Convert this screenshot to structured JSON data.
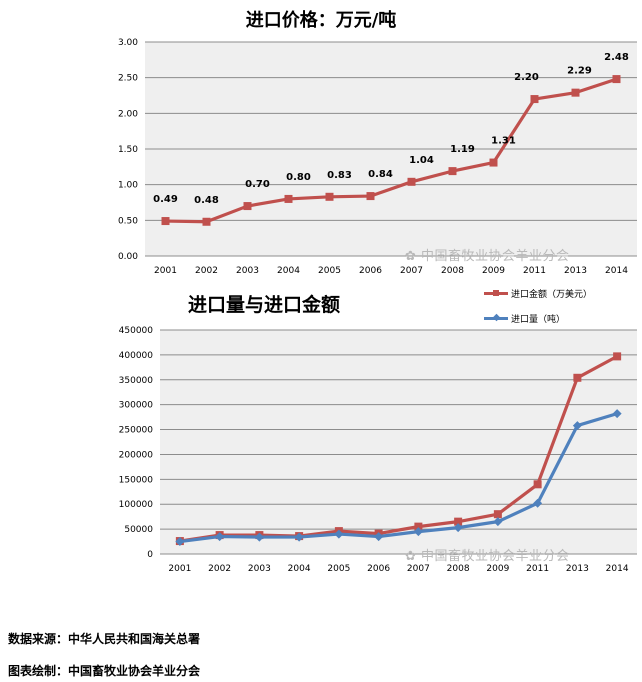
{
  "chart_data": [
    {
      "type": "line",
      "title": "进口价格：万元/吨",
      "categories": [
        "2001",
        "2002",
        "2003",
        "2004",
        "2005",
        "2006",
        "2007",
        "2008",
        "2009",
        "2011",
        "2013",
        "2014"
      ],
      "series": [
        {
          "values": [
            0.49,
            0.48,
            0.7,
            0.8,
            0.83,
            0.84,
            1.04,
            1.19,
            1.31,
            2.2,
            2.29,
            2.48
          ],
          "color": "#c0504d"
        }
      ],
      "data_labels": [
        "0.49",
        "0.48",
        "0.70",
        "0.80",
        "0.83",
        "0.84",
        "1.04",
        "1.19",
        "1.31",
        "2.20",
        "2.29",
        "2.48"
      ],
      "yticks": [
        "0.00",
        "0.50",
        "1.00",
        "1.50",
        "2.00",
        "2.50",
        "3.00"
      ],
      "ylim": [
        0,
        3
      ],
      "grid": true,
      "plot_background": "#efefef",
      "marker": "square"
    },
    {
      "type": "line",
      "title": "进口量与进口金额",
      "categories": [
        "2001",
        "2002",
        "2003",
        "2004",
        "2005",
        "2006",
        "2007",
        "2008",
        "2009",
        "2011",
        "2013",
        "2014"
      ],
      "series": [
        {
          "name": "进口金额（万美元）",
          "values": [
            26000,
            38000,
            38000,
            36000,
            46000,
            41000,
            55000,
            65000,
            80000,
            140000,
            354000,
            397000
          ],
          "color": "#c0504d",
          "marker": "square"
        },
        {
          "name": "进口量（吨）",
          "values": [
            25000,
            35000,
            34000,
            34000,
            40000,
            35000,
            45000,
            53000,
            65000,
            102000,
            258000,
            282000
          ],
          "color": "#4f81bd",
          "marker": "diamond"
        }
      ],
      "yticks": [
        "0",
        "50000",
        "100000",
        "150000",
        "200000",
        "250000",
        "300000",
        "350000",
        "400000",
        "450000"
      ],
      "ylim": [
        0,
        450000
      ],
      "grid": true,
      "legend": "top-right",
      "plot_background": "#efefef"
    }
  ],
  "watermark": "中国畜牧业协会羊业分会",
  "footer": {
    "source": "数据来源：中华人民共和国海关总署",
    "author": "图表绘制：中国畜牧业协会羊业分会"
  }
}
